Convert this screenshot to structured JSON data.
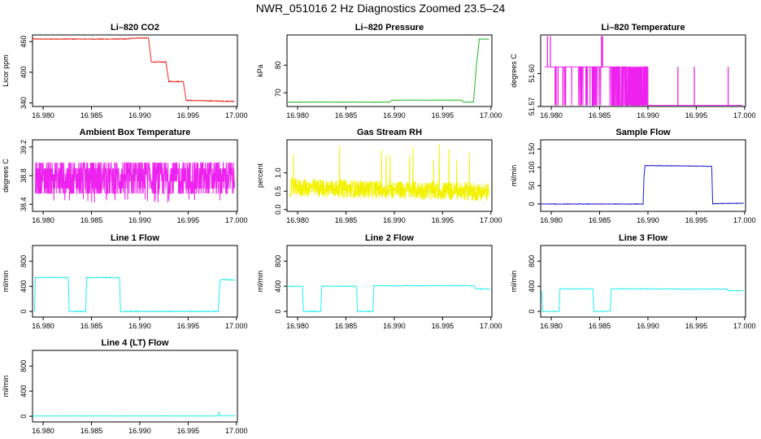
{
  "figure_title": "NWR_051016  2 Hz Diagnostics Zoomed 23.5–24",
  "colors": {
    "red": "#e8281e",
    "green": "#22b422",
    "magenta": "#ee22ee",
    "yellow": "#f2f200",
    "blue": "#1f1fd2",
    "cyan": "#22eeee",
    "axis": "#000000"
  },
  "chart_data": [
    {
      "id": "co2",
      "type": "line",
      "title": "Li–820 CO2",
      "ylabel": "Licor ppm",
      "color": "red",
      "xlim": [
        16.9789,
        17.0001
      ],
      "ylim": [
        333,
        473
      ],
      "xticks": [
        16.98,
        16.985,
        16.99,
        16.995,
        17.0
      ],
      "xtick_labels": [
        "16.980",
        "16.985",
        "16.990",
        "16.995",
        "17.000"
      ],
      "yticks": [
        340,
        400,
        460
      ],
      "ytick_labels": [
        "340",
        "400",
        "460"
      ],
      "noise": 0.8,
      "points": [
        [
          16.9789,
          465
        ],
        [
          16.9886,
          465
        ],
        [
          16.9896,
          467
        ],
        [
          16.9909,
          467
        ],
        [
          16.9912,
          420
        ],
        [
          16.9927,
          420
        ],
        [
          16.993,
          382
        ],
        [
          16.9945,
          382
        ],
        [
          16.9948,
          345
        ],
        [
          16.9998,
          343
        ]
      ]
    },
    {
      "id": "pressure",
      "type": "line",
      "title": "Li–820 Pressure",
      "ylabel": "kPa",
      "color": "green",
      "xlim": [
        16.9789,
        17.0001
      ],
      "ylim": [
        65,
        91
      ],
      "xticks": [
        16.98,
        16.985,
        16.99,
        16.995,
        17.0
      ],
      "xtick_labels": [
        "16.980",
        "16.985",
        "16.990",
        "16.995",
        "17.000"
      ],
      "yticks": [
        70,
        80
      ],
      "ytick_labels": [
        "70",
        "80"
      ],
      "noise": 0.05,
      "points": [
        [
          16.9789,
          66.6
        ],
        [
          16.9895,
          66.6
        ],
        [
          16.9897,
          67.3
        ],
        [
          16.9969,
          67.3
        ],
        [
          16.9972,
          66.6
        ],
        [
          16.9982,
          66.6
        ],
        [
          16.9985,
          80
        ],
        [
          16.9988,
          89.5
        ],
        [
          16.9998,
          89.5
        ]
      ]
    },
    {
      "id": "temperature",
      "type": "line",
      "title": "Li–820 Temperature",
      "ylabel": "degrees C",
      "color": "magenta",
      "xlim": [
        16.9789,
        17.0001
      ],
      "ylim": [
        51.57,
        51.635
      ],
      "xticks": [
        16.98,
        16.985,
        16.99,
        16.995,
        17.0
      ],
      "xtick_labels": [
        "16.980",
        "16.985",
        "16.990",
        "16.995",
        "17.000"
      ],
      "yticks": [
        51.57,
        51.6
      ],
      "ytick_labels": [
        "51.57",
        "51.60"
      ],
      "noise": 0,
      "base": 51.606,
      "low": 51.571,
      "spikes": [
        16.9804,
        16.9805,
        16.9807,
        16.9812,
        16.9931,
        16.9948,
        16.9983
      ],
      "high_spikes": [
        16.9796,
        16.9799,
        16.9852,
        16.9853
      ]
    },
    {
      "id": "box-temp",
      "type": "line",
      "title": "Ambient Box Temperature",
      "ylabel": "degrees C",
      "color": "magenta",
      "xlim": [
        16.9789,
        17.0001
      ],
      "ylim": [
        38.3,
        39.3
      ],
      "xticks": [
        16.98,
        16.985,
        16.99,
        16.995,
        17.0
      ],
      "xtick_labels": [
        "16.980",
        "16.985",
        "16.990",
        "16.995",
        "17.000"
      ],
      "yticks": [
        38.4,
        38.8,
        39.2
      ],
      "ytick_labels": [
        "38.4",
        "38.8",
        "39.2"
      ],
      "levels": [
        38.55,
        38.62,
        38.72,
        38.82,
        38.9,
        38.98
      ]
    },
    {
      "id": "rh",
      "type": "line",
      "title": "Gas Stream RH",
      "ylabel": "percent",
      "color": "yellow",
      "xlim": [
        16.9789,
        17.0001
      ],
      "ylim": [
        -0.05,
        1.9
      ],
      "xticks": [
        16.98,
        16.985,
        16.99,
        16.995,
        17.0
      ],
      "xtick_labels": [
        "16.980",
        "16.985",
        "16.990",
        "16.995",
        "17.000"
      ],
      "yticks": [
        0.0,
        0.5,
        1.0
      ],
      "ytick_labels": [
        "0.0",
        "0.5",
        "1.0"
      ],
      "mean": 0.6,
      "spread": 0.25
    },
    {
      "id": "sample-flow",
      "type": "line",
      "title": "Sample Flow",
      "ylabel": "ml/min",
      "color": "blue",
      "xlim": [
        16.9789,
        17.0001
      ],
      "ylim": [
        -20,
        175
      ],
      "xticks": [
        16.98,
        16.985,
        16.99,
        16.995,
        17.0
      ],
      "xtick_labels": [
        "16.980",
        "16.985",
        "16.990",
        "16.995",
        "17.000"
      ],
      "yticks": [
        0,
        50,
        100,
        150
      ],
      "ytick_labels": [
        "0",
        "50",
        "100",
        "150"
      ],
      "noise": 0.8,
      "points": [
        [
          16.9789,
          0
        ],
        [
          16.9895,
          0
        ],
        [
          16.9896,
          80
        ],
        [
          16.9897,
          105
        ],
        [
          16.9966,
          103
        ],
        [
          16.9967,
          1
        ],
        [
          16.9999,
          2
        ]
      ]
    },
    {
      "id": "line1",
      "type": "line",
      "title": "Line 1 Flow",
      "ylabel": "ml/min",
      "color": "cyan",
      "xlim": [
        16.9789,
        17.0001
      ],
      "ylim": [
        -90,
        1050
      ],
      "xticks": [
        16.98,
        16.985,
        16.99,
        16.995,
        17.0
      ],
      "xtick_labels": [
        "16.980",
        "16.985",
        "16.990",
        "16.995",
        "17.000"
      ],
      "yticks": [
        0,
        400,
        800
      ],
      "ytick_labels": [
        "0",
        "400",
        "800"
      ],
      "noise": 6,
      "points": [
        [
          16.9791,
          0
        ],
        [
          16.9792,
          540
        ],
        [
          16.9826,
          540
        ],
        [
          16.9827,
          0
        ],
        [
          16.9844,
          0
        ],
        [
          16.9845,
          540
        ],
        [
          16.9879,
          540
        ],
        [
          16.988,
          0
        ],
        [
          16.9981,
          0
        ],
        [
          16.9983,
          480
        ],
        [
          16.9985,
          510
        ],
        [
          16.9999,
          500
        ]
      ]
    },
    {
      "id": "line2",
      "type": "line",
      "title": "Line 2 Flow",
      "ylabel": "ml/min",
      "color": "cyan",
      "xlim": [
        16.9789,
        17.0001
      ],
      "ylim": [
        -90,
        1050
      ],
      "xticks": [
        16.98,
        16.985,
        16.99,
        16.995,
        17.0
      ],
      "xtick_labels": [
        "16.980",
        "16.985",
        "16.990",
        "16.995",
        "17.000"
      ],
      "yticks": [
        0,
        400,
        800
      ],
      "ytick_labels": [
        "0",
        "400",
        "800"
      ],
      "noise": 5,
      "points": [
        [
          16.9789,
          400
        ],
        [
          16.9805,
          400
        ],
        [
          16.9806,
          0
        ],
        [
          16.9824,
          0
        ],
        [
          16.9825,
          400
        ],
        [
          16.9861,
          400
        ],
        [
          16.9862,
          0
        ],
        [
          16.9878,
          0
        ],
        [
          16.9879,
          410
        ],
        [
          16.9983,
          410
        ],
        [
          16.9984,
          360
        ],
        [
          16.9999,
          360
        ]
      ]
    },
    {
      "id": "line3",
      "type": "line",
      "title": "Line 3 Flow",
      "ylabel": "ml/min",
      "color": "cyan",
      "xlim": [
        16.9789,
        17.0001
      ],
      "ylim": [
        -90,
        1050
      ],
      "xticks": [
        16.98,
        16.985,
        16.99,
        16.995,
        17.0
      ],
      "xtick_labels": [
        "16.980",
        "16.985",
        "16.990",
        "16.995",
        "17.000"
      ],
      "yticks": [
        0,
        400,
        800
      ],
      "ytick_labels": [
        "0",
        "400",
        "800"
      ],
      "noise": 4,
      "points": [
        [
          16.979,
          330
        ],
        [
          16.9791,
          0
        ],
        [
          16.9808,
          0
        ],
        [
          16.9809,
          360
        ],
        [
          16.9843,
          360
        ],
        [
          16.9844,
          0
        ],
        [
          16.9861,
          0
        ],
        [
          16.9862,
          360
        ],
        [
          16.9982,
          355
        ],
        [
          16.9983,
          330
        ],
        [
          16.9999,
          330
        ]
      ]
    },
    {
      "id": "line4",
      "type": "line",
      "title": "Line 4 (LT) Flow",
      "ylabel": "ml/min",
      "color": "cyan",
      "xlim": [
        16.9789,
        17.0001
      ],
      "ylim": [
        -90,
        1050
      ],
      "xticks": [
        16.98,
        16.985,
        16.99,
        16.995,
        17.0
      ],
      "xtick_labels": [
        "16.980",
        "16.985",
        "16.990",
        "16.995",
        "17.000"
      ],
      "yticks": [
        0,
        400,
        800
      ],
      "ytick_labels": [
        "0",
        "400",
        "800"
      ],
      "noise": 2,
      "points": [
        [
          16.9789,
          5
        ],
        [
          16.9981,
          5
        ],
        [
          16.9982,
          70
        ],
        [
          16.9983,
          8
        ],
        [
          16.9999,
          8
        ]
      ]
    }
  ]
}
